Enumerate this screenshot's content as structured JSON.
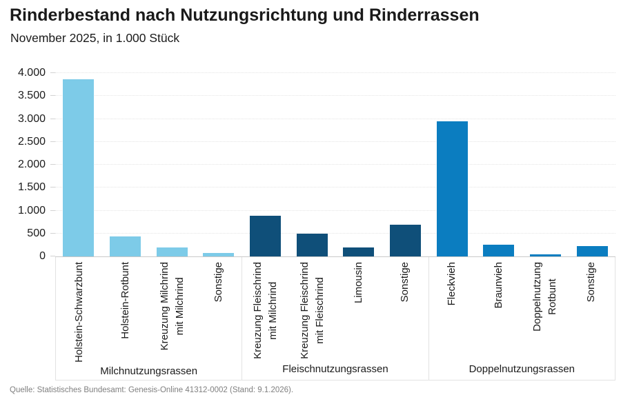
{
  "header": {
    "title": "Rinderbestand nach Nutzungsrichtung und Rinderrassen",
    "subtitle": "November 2025, in 1.000 Stück"
  },
  "chart_data": {
    "type": "bar",
    "title": "Rinderbestand nach Nutzungsrichtung und Rinderrassen",
    "subtitle": "November 2025, in 1.000 Stück",
    "unit": "1.000 Stück",
    "ylim": [
      0,
      4000
    ],
    "grid": "horizontal dotted",
    "legend_position": "none",
    "yticks": [
      {
        "label": "0",
        "value": 0
      },
      {
        "label": "500",
        "value": 500
      },
      {
        "label": "1.000",
        "value": 1000
      },
      {
        "label": "1.500",
        "value": 1500
      },
      {
        "label": "2.000",
        "value": 2000
      },
      {
        "label": "2.500",
        "value": 2500
      },
      {
        "label": "3.000",
        "value": 3000
      },
      {
        "label": "3.500",
        "value": 3500
      },
      {
        "label": "4.000",
        "value": 4000
      }
    ],
    "groups": [
      {
        "name": "Milchnutzungsrassen",
        "color": "#7DCBE8",
        "bars": [
          {
            "label": "Holstein-Schwarzbunt",
            "value": 3870
          },
          {
            "label": "Holstein-Rotbunt",
            "value": 430
          },
          {
            "label": "Kreuzung Milchrind\nmit Milchrind",
            "value": 200
          },
          {
            "label": "Sonstige",
            "value": 75
          }
        ]
      },
      {
        "name": "Fleischnutzungsrassen",
        "color": "#0F4F79",
        "bars": [
          {
            "label": "Kreuzung Fleischrind\nmit Milchrind",
            "value": 890
          },
          {
            "label": "Kreuzung Fleischrind\nmit Fleischrind",
            "value": 500
          },
          {
            "label": "Limousin",
            "value": 190
          },
          {
            "label": "Sonstige",
            "value": 690
          }
        ]
      },
      {
        "name": "Doppelnutzungsrassen",
        "color": "#0B7DC0",
        "bars": [
          {
            "label": "Fleckvieh",
            "value": 2950
          },
          {
            "label": "Braunvieh",
            "value": 250
          },
          {
            "label": "Doppelnutzung\nRotbunt",
            "value": 50
          },
          {
            "label": "Sonstige",
            "value": 220
          }
        ]
      }
    ]
  },
  "footer": {
    "source": "Quelle: Statistisches Bundesamt: Genesis-Online 41312-0002 (Stand: 9.1.2026)."
  }
}
